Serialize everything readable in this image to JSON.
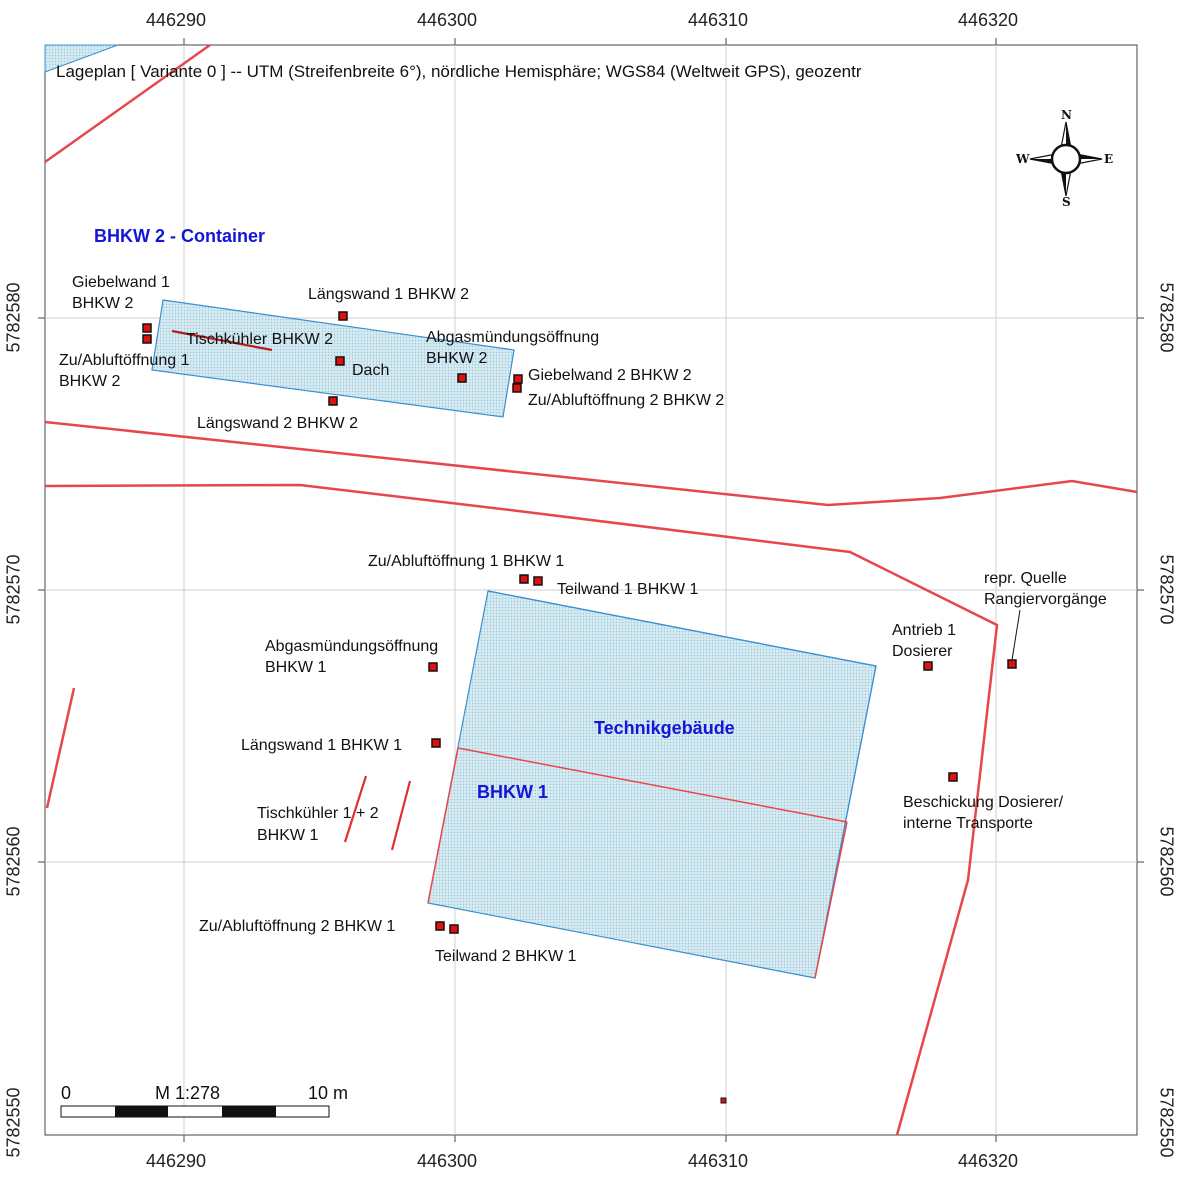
{
  "title": "Lageplan  [ Variante 0 ]  --  UTM (Streifenbreite 6°), nördliche Hemisphäre; WGS84 (Weltweit GPS), geozentr",
  "x_ticks": [
    "446290",
    "446300",
    "446310",
    "446320"
  ],
  "y_ticks": [
    "5782580",
    "5782570",
    "5782560",
    "5782550"
  ],
  "area_labels": {
    "container": "BHKW 2 - Container",
    "technik": "Technikgebäude",
    "bhkw1": "BHKW 1"
  },
  "sources": {
    "giebelwand1_bhkw2_l1": "Giebelwand 1",
    "giebelwand1_bhkw2_l2": "BHKW 2",
    "laengswand1_bhkw2": "Längswand 1 BHKW 2",
    "tischkuehler_bhkw2": "Tischkühler BHKW 2",
    "abgas_bhkw2_l1": "Abgasmündungsöffnung",
    "abgas_bhkw2_l2": "BHKW 2",
    "zuabluft1_bhkw2_l1": "Zu/Abluftöffnung 1",
    "zuabluft1_bhkw2_l2": "BHKW 2",
    "dach": "Dach",
    "giebelwand2_bhkw2": "Giebelwand 2 BHKW 2",
    "zuabluft2_bhkw2": "Zu/Abluftöffnung 2 BHKW 2",
    "laengswand2_bhkw2": "Längswand 2 BHKW 2",
    "zuabluft1_bhkw1": "Zu/Abluftöffnung 1 BHKW 1",
    "teilwand1_bhkw1": "Teilwand 1 BHKW 1",
    "abgas_bhkw1_l1": "Abgasmündungsöffnung",
    "abgas_bhkw1_l2": "BHKW 1",
    "laengswand1_bhkw1": "Längswand 1 BHKW 1",
    "tischkuehler12_l1": "Tischkühler 1 + 2",
    "tischkuehler12_l2": "BHKW 1",
    "zuabluft2_bhkw1": "Zu/Abluftöffnung 2 BHKW 1",
    "teilwand2_bhkw1": "Teilwand 2 BHKW 1",
    "antrieb_l1": "Antrieb 1",
    "antrieb_l2": "Dosierer",
    "repr_l1": "repr. Quelle",
    "repr_l2": "Rangiervorgänge",
    "beschickung_l1": "Beschickung Dosierer/",
    "beschickung_l2": "interne Transporte"
  },
  "compass": {
    "n": "N",
    "s": "S",
    "e": "E",
    "w": "W"
  },
  "scale": {
    "zero": "0",
    "ratio": "M 1:278",
    "length": "10 m"
  },
  "colors": {
    "grid": "#c8c8c8",
    "road": "#e8474a",
    "building_fill": "#cfe5ee",
    "building_stroke": "#3a8fd0",
    "source_fill": "#e01010",
    "label_blue": "#1515d8"
  }
}
